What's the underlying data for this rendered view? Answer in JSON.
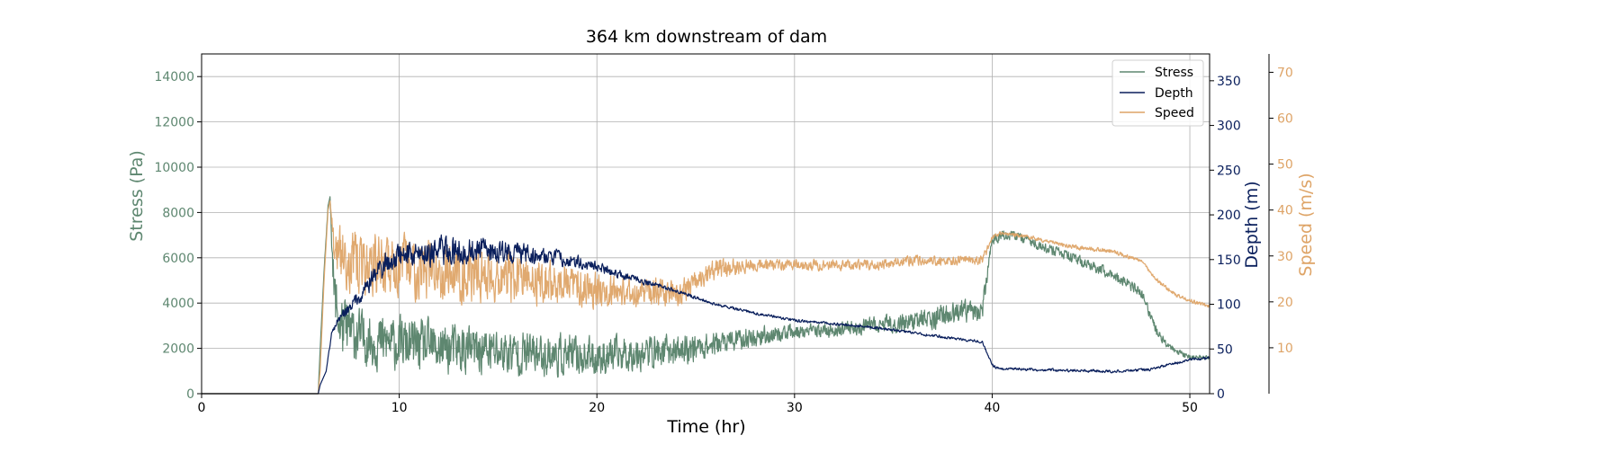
{
  "colors": {
    "stress": "#5e8770",
    "depth": "#0a1f5c",
    "speed": "#dea467",
    "grid": "#b0b0b0"
  },
  "chart_data": {
    "type": "line",
    "title": "364 km downstream of dam",
    "xlabel": "Time (hr)",
    "xlim": [
      0,
      51
    ],
    "x_ticks": [
      0,
      10,
      20,
      30,
      40,
      50
    ],
    "grid": true,
    "legend_position": "top-right",
    "axes": {
      "stress": {
        "label": "Stress (Pa)",
        "ylim": [
          0,
          15000
        ],
        "ticks": [
          0,
          2000,
          4000,
          6000,
          8000,
          10000,
          12000,
          14000
        ],
        "side": "left"
      },
      "depth": {
        "label": "Depth (m)",
        "ylim": [
          0,
          380
        ],
        "ticks": [
          0,
          50,
          100,
          150,
          200,
          250,
          300,
          350
        ],
        "side": "right"
      },
      "speed": {
        "label": "Speed (m/s)",
        "ylim": [
          0,
          74
        ],
        "ticks": [
          10,
          20,
          30,
          40,
          50,
          60,
          70
        ],
        "side": "right-outer"
      }
    },
    "series": [
      {
        "name": "Stress",
        "axis": "stress",
        "color_key": "stress",
        "x": [
          0,
          5.9,
          6.0,
          6.2,
          6.4,
          6.5,
          6.7,
          7.0,
          8,
          9,
          10,
          12,
          14,
          16,
          18,
          20,
          22,
          24,
          26,
          28,
          30,
          32,
          34,
          36,
          38,
          39.5,
          40.0,
          40.5,
          41.5,
          42.5,
          44,
          46,
          47.5,
          48.3,
          49,
          50,
          51
        ],
        "values": [
          0,
          0,
          2000,
          5500,
          8300,
          8700,
          4500,
          3000,
          2500,
          2300,
          2200,
          2000,
          1900,
          1800,
          1700,
          1600,
          1800,
          1900,
          2200,
          2500,
          2700,
          2800,
          3000,
          3200,
          3500,
          3700,
          6800,
          7000,
          6900,
          6500,
          6000,
          5300,
          4500,
          2800,
          2000,
          1600,
          1600
        ],
        "noise": [
          0,
          0,
          0,
          0,
          0,
          0,
          1600,
          1800,
          1600,
          1600,
          1500,
          1500,
          1400,
          1300,
          1200,
          1100,
          1000,
          900,
          700,
          600,
          400,
          400,
          500,
          600,
          700,
          600,
          300,
          300,
          300,
          300,
          300,
          300,
          300,
          300,
          200,
          150,
          100
        ]
      },
      {
        "name": "Depth",
        "axis": "depth",
        "color_key": "depth",
        "x": [
          0,
          5.9,
          6.0,
          6.3,
          6.6,
          7.0,
          8,
          9,
          10,
          12,
          14,
          16,
          18,
          20,
          22,
          24,
          26,
          28,
          30,
          32,
          34,
          36,
          38,
          39.5,
          40.0,
          40.3,
          42,
          44,
          46,
          48,
          49,
          50,
          51
        ],
        "values": [
          0,
          0,
          10,
          25,
          70,
          85,
          110,
          140,
          155,
          160,
          160,
          158,
          152,
          142,
          128,
          115,
          100,
          90,
          82,
          78,
          74,
          68,
          62,
          58,
          32,
          28,
          27,
          26,
          25,
          27,
          33,
          38,
          40
        ],
        "noise": [
          0,
          0,
          0,
          0,
          4,
          6,
          12,
          18,
          20,
          22,
          20,
          16,
          12,
          8,
          5,
          3,
          2,
          2,
          2,
          2,
          2,
          2,
          2,
          2,
          2,
          2,
          2,
          2,
          2,
          2,
          2,
          2,
          2
        ]
      },
      {
        "name": "Speed",
        "axis": "speed",
        "color_key": "speed",
        "x": [
          0,
          5.9,
          6.0,
          6.2,
          6.4,
          6.5,
          6.7,
          7,
          8,
          9,
          10,
          12,
          14,
          16,
          18,
          20,
          22,
          24,
          25,
          26,
          28,
          30,
          32,
          34,
          36,
          38,
          39.5,
          40.0,
          40.5,
          42,
          44,
          46,
          47.5,
          48.5,
          49.5,
          51
        ],
        "values": [
          0,
          0,
          5,
          25,
          40,
          42,
          32,
          30,
          28,
          28,
          28,
          27,
          26,
          25,
          24,
          23,
          22,
          22,
          24,
          27,
          28,
          28,
          28,
          28,
          29,
          29,
          29,
          34,
          35,
          34,
          32,
          31,
          29,
          24,
          21,
          19
        ],
        "noise": [
          0,
          0,
          0,
          0,
          0,
          0,
          6,
          8,
          9,
          9,
          9,
          8,
          8,
          7,
          6,
          5,
          4,
          4,
          3,
          3,
          2,
          1.5,
          1.5,
          1.5,
          1.5,
          1.5,
          1.5,
          0.6,
          0.6,
          0.6,
          0.6,
          0.6,
          0.6,
          0.6,
          0.6,
          0.5
        ]
      }
    ]
  }
}
